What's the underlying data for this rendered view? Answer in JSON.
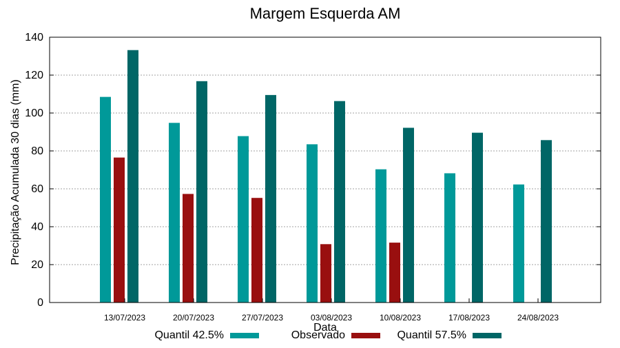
{
  "chart_data": {
    "type": "bar",
    "title": "Margem Esquerda AM",
    "xlabel": "Data",
    "ylabel": "Precipitação Acumulada 30 dias (mm)",
    "ylim": [
      0,
      140
    ],
    "yticks": [
      0,
      20,
      40,
      60,
      80,
      100,
      120,
      140
    ],
    "grid": true,
    "legend_position": "bottom",
    "categories": [
      "13/07/2023",
      "20/07/2023",
      "27/07/2023",
      "03/08/2023",
      "10/08/2023",
      "17/08/2023",
      "24/08/2023"
    ],
    "series": [
      {
        "name": "Quantil 42.5%",
        "color": "#009999",
        "values": [
          108.5,
          94.8,
          87.8,
          83.5,
          70.3,
          68.2,
          62.3
        ]
      },
      {
        "name": "Observado",
        "color": "#990f0f",
        "values": [
          76.5,
          57.3,
          55.2,
          30.8,
          31.6,
          null,
          null
        ]
      },
      {
        "name": "Quantil 57.5%",
        "color": "#006666",
        "values": [
          133.2,
          116.8,
          109.5,
          106.3,
          92.2,
          89.6,
          85.7
        ]
      }
    ]
  }
}
